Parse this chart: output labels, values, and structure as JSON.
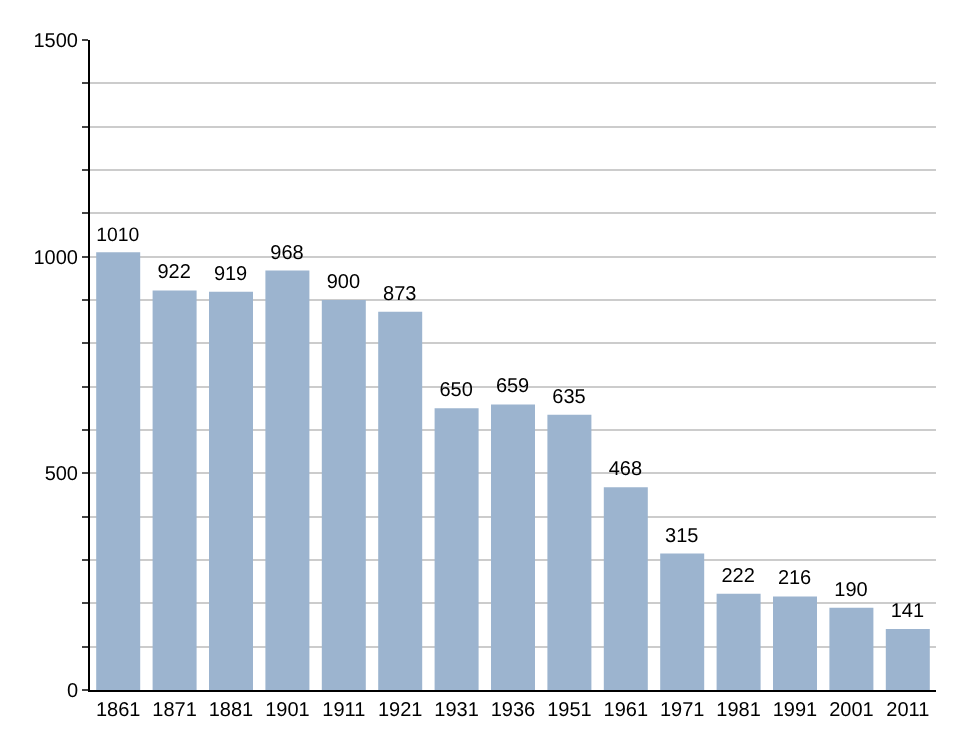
{
  "chart_data": {
    "type": "bar",
    "categories": [
      "1861",
      "1871",
      "1881",
      "1901",
      "1911",
      "1921",
      "1931",
      "1936",
      "1951",
      "1961",
      "1971",
      "1981",
      "1991",
      "2001",
      "2011"
    ],
    "values": [
      1010,
      922,
      919,
      968,
      900,
      873,
      650,
      659,
      635,
      468,
      315,
      222,
      216,
      190,
      141
    ],
    "color": "#9cb4cf",
    "ylim": [
      0,
      1500
    ],
    "yticks": [
      0,
      {
        "value": 100,
        "label": null
      },
      {
        "value": 200,
        "label": null
      },
      {
        "value": 300,
        "label": null
      },
      {
        "value": 400,
        "label": null
      },
      500,
      {
        "value": 600,
        "label": null
      },
      {
        "value": 700,
        "label": null
      },
      {
        "value": 800,
        "label": null
      },
      {
        "value": 900,
        "label": null
      },
      1000,
      {
        "value": 1100,
        "label": null
      },
      {
        "value": 1200,
        "label": null
      },
      {
        "value": 1300,
        "label": null
      },
      {
        "value": 1400,
        "label": null
      },
      1500
    ],
    "grid": "y",
    "data_labels": true
  }
}
